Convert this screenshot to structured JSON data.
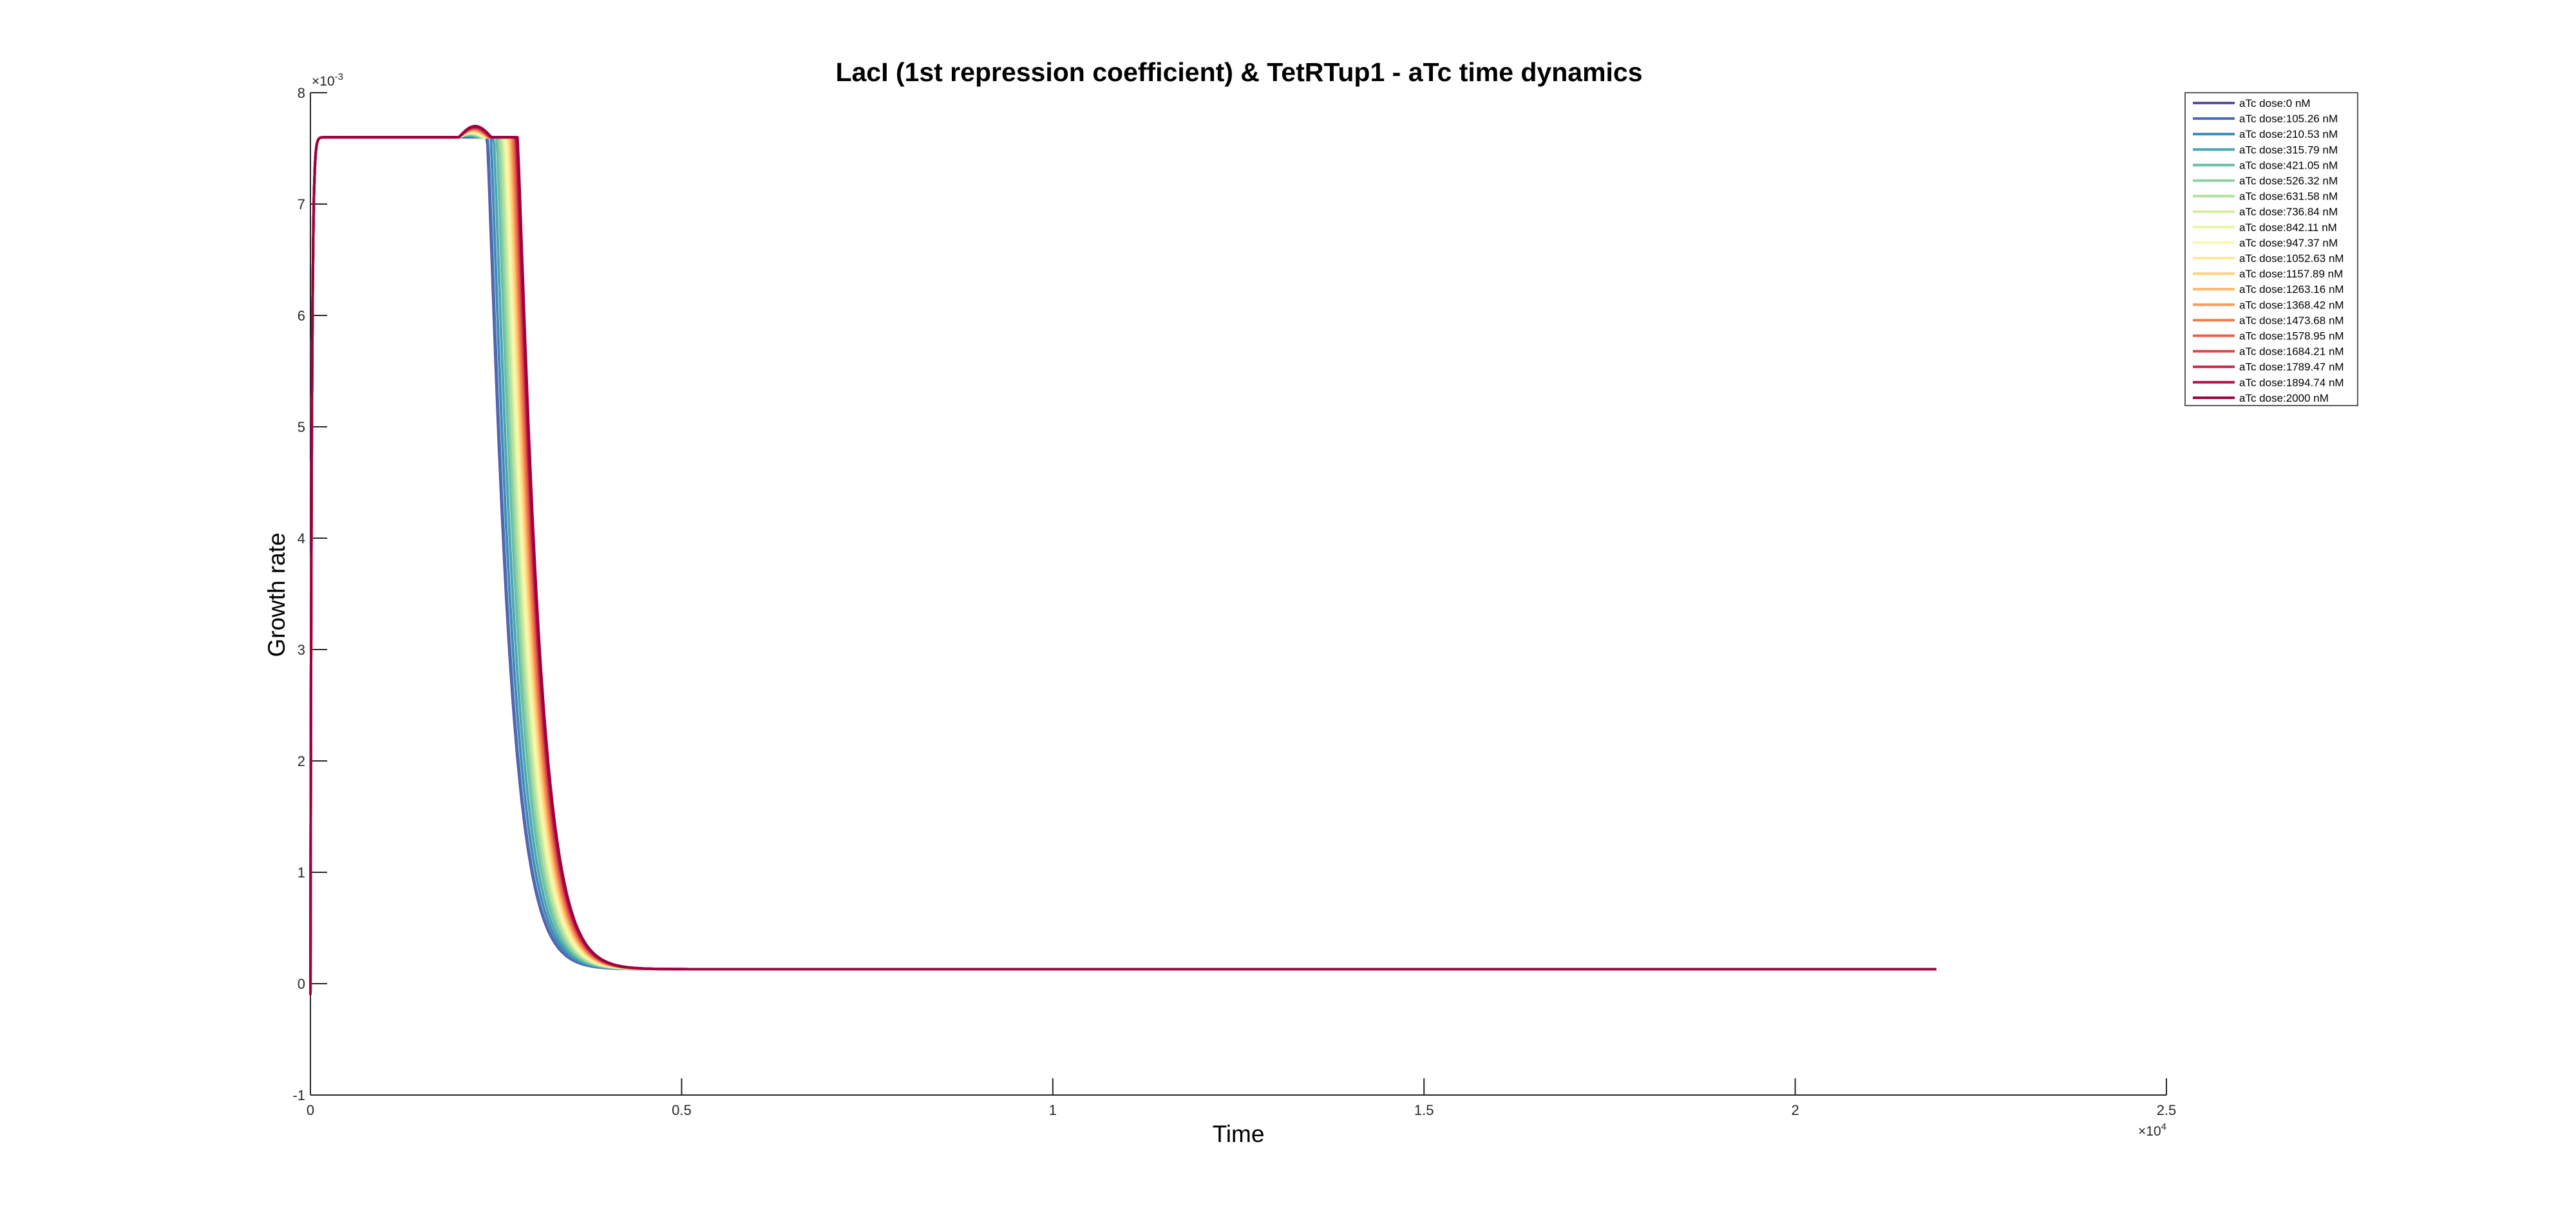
{
  "chart_data": {
    "type": "line",
    "title": "LacI (1st repression coefficient) & TetRTup1 - aTc time dynamics",
    "xlabel": "Time",
    "ylabel": "Growth rate",
    "x_exponent_label": "×10",
    "x_exponent": "4",
    "y_exponent_label": "×10",
    "y_exponent": "-3",
    "xlim": [
      0,
      25000
    ],
    "ylim": [
      -0.001,
      0.008
    ],
    "xticks": [
      0,
      5000,
      10000,
      15000,
      20000,
      25000
    ],
    "xtick_labels": [
      "0",
      "0.5",
      "1",
      "1.5",
      "2",
      "2.5"
    ],
    "yticks": [
      -0.001,
      0,
      0.001,
      0.002,
      0.003,
      0.004,
      0.005,
      0.006,
      0.007,
      0.008
    ],
    "ytick_labels": [
      "-1",
      "0",
      "1",
      "2",
      "3",
      "4",
      "5",
      "6",
      "7",
      "8"
    ],
    "grid": false,
    "legend_position": "top-right, outside",
    "plateau": 0.0076,
    "baseline": 0.00013,
    "x_end": 22000,
    "series": [
      {
        "name": "aTc dose:0 nM",
        "color": "#5e4fa2",
        "drop_time": 2380
      },
      {
        "name": "aTc dose:105.26 nM",
        "color": "#4a6cb3",
        "drop_time": 2390
      },
      {
        "name": "aTc dose:210.53 nM",
        "color": "#3f8ab8",
        "drop_time": 2430
      },
      {
        "name": "aTc dose:315.79 nM",
        "color": "#4aa5b1",
        "drop_time": 2470
      },
      {
        "name": "aTc dose:421.05 nM",
        "color": "#66bea6",
        "drop_time": 2510
      },
      {
        "name": "aTc dose:526.32 nM",
        "color": "#8ed0a4",
        "drop_time": 2540
      },
      {
        "name": "aTc dose:631.58 nM",
        "color": "#b3e0a3",
        "drop_time": 2570
      },
      {
        "name": "aTc dose:736.84 nM",
        "color": "#d3ed9f",
        "drop_time": 2600
      },
      {
        "name": "aTc dose:842.11 nM",
        "color": "#ebf7a2",
        "drop_time": 2620
      },
      {
        "name": "aTc dose:947.37 nM",
        "color": "#fbf8b0",
        "drop_time": 2640
      },
      {
        "name": "aTc dose:1052.63 nM",
        "color": "#fee99a",
        "drop_time": 2660
      },
      {
        "name": "aTc dose:1157.89 nM",
        "color": "#fed27f",
        "drop_time": 2680
      },
      {
        "name": "aTc dose:1263.16 nM",
        "color": "#fdb76a",
        "drop_time": 2700
      },
      {
        "name": "aTc dose:1368.42 nM",
        "color": "#fb9a59",
        "drop_time": 2715
      },
      {
        "name": "aTc dose:1473.68 nM",
        "color": "#f57c4b",
        "drop_time": 2730
      },
      {
        "name": "aTc dose:1578.95 nM",
        "color": "#e8624a",
        "drop_time": 2745
      },
      {
        "name": "aTc dose:1684.21 nM",
        "color": "#d9474b",
        "drop_time": 2760
      },
      {
        "name": "aTc dose:1789.47 nM",
        "color": "#c42d4c",
        "drop_time": 2770
      },
      {
        "name": "aTc dose:1894.74 nM",
        "color": "#b01246",
        "drop_time": 2780
      },
      {
        "name": "aTc dose:2000 nM",
        "color": "#9e0142",
        "drop_time": 2790
      }
    ]
  }
}
